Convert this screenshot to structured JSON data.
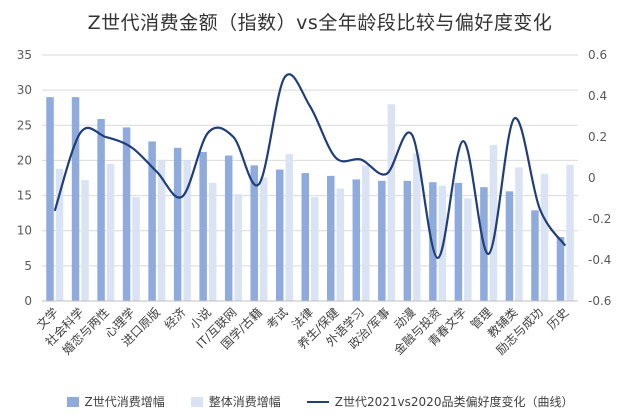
{
  "chart_data": {
    "type": "bar",
    "title": "Z世代消费金额（指数）vs全年龄段比较与偏好度变化",
    "categories": [
      "文学",
      "社会科学",
      "婚恋与两性",
      "心理学",
      "进口原版",
      "经济",
      "小说",
      "IT/互联网",
      "国学/古籍",
      "考试",
      "法律",
      "养生/保健",
      "外语学习",
      "政治/军事",
      "动漫",
      "金融与投资",
      "青春文学",
      "管理",
      "教辅类",
      "励志与成功",
      "历史"
    ],
    "series": [
      {
        "name": "Z世代消费增幅",
        "axis": "left",
        "kind": "bar",
        "color": "#8faadc",
        "values": [
          29.0,
          29.0,
          25.9,
          24.7,
          22.7,
          21.8,
          21.2,
          20.7,
          19.3,
          18.7,
          18.2,
          17.8,
          17.3,
          17.1,
          17.1,
          16.9,
          16.8,
          16.2,
          15.6,
          12.9,
          9.1
        ]
      },
      {
        "name": "整体消费增幅",
        "axis": "left",
        "kind": "bar",
        "color": "#dae3f3",
        "values": [
          18.8,
          17.2,
          19.5,
          14.8,
          20.1,
          20.0,
          16.8,
          15.2,
          17.6,
          20.9,
          14.8,
          16.0,
          19.3,
          28.0,
          21.0,
          16.4,
          14.6,
          22.2,
          19.0,
          18.1,
          19.4
        ]
      },
      {
        "name": "Z世代2021vs2020品类偏好度变化（曲线）",
        "axis": "right",
        "kind": "line",
        "color": "#1f3e7a",
        "values": [
          -0.16,
          0.22,
          0.2,
          0.15,
          0.03,
          -0.09,
          0.22,
          0.2,
          -0.03,
          0.49,
          0.35,
          0.1,
          0.09,
          0.02,
          0.21,
          -0.39,
          0.18,
          -0.37,
          0.29,
          -0.15,
          -0.33
        ]
      }
    ],
    "ylim_left": [
      0,
      35
    ],
    "ylim_right": [
      -0.6,
      0.6
    ],
    "yticks_left": [
      "0",
      "5",
      "10",
      "15",
      "20",
      "25",
      "30",
      "35"
    ],
    "yticks_right": [
      "-0.6",
      "-0.4",
      "-0.2",
      "0",
      "0.2",
      "0.4",
      "0.6"
    ],
    "grid": true,
    "legend_position": "bottom"
  },
  "colors": {
    "bar_z": "#8faadc",
    "bar_all": "#dae3f3",
    "line": "#1f3e7a",
    "grid": "#d9d9d9"
  }
}
